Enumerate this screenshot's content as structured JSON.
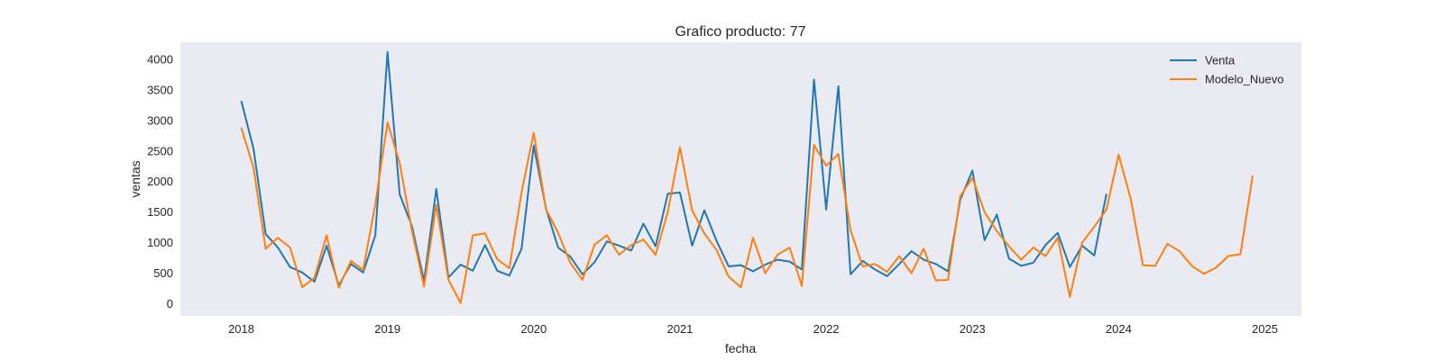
{
  "chart_data": {
    "type": "line",
    "title": "Grafico producto: 77",
    "xlabel": "fecha",
    "ylabel": "ventas",
    "xlim": [
      "2017-08-01",
      "2025-04-01"
    ],
    "ylim": [
      -200,
      4280
    ],
    "x_ticks": [
      "2018",
      "2019",
      "2020",
      "2021",
      "2022",
      "2023",
      "2024",
      "2025"
    ],
    "y_ticks": [
      0,
      500,
      1000,
      1500,
      2000,
      2500,
      3000,
      3500,
      4000
    ],
    "grid": false,
    "legend_position": "top-right",
    "colors": {
      "background": "#eaeaf2",
      "Venta": "#1f77b4",
      "Modelo_Nuevo": "#ff7f0e"
    },
    "series": [
      {
        "name": "Venta",
        "start": "2018-01",
        "values": [
          3320,
          2540,
          1140,
          920,
          600,
          510,
          360,
          950,
          300,
          650,
          510,
          1120,
          4120,
          1790,
          1270,
          370,
          1880,
          430,
          640,
          540,
          960,
          540,
          460,
          900,
          2590,
          1560,
          920,
          770,
          480,
          680,
          1020,
          950,
          870,
          1310,
          940,
          1800,
          1820,
          950,
          1530,
          1030,
          610,
          630,
          530,
          640,
          720,
          690,
          560,
          3670,
          1540,
          3560,
          480,
          700,
          560,
          450,
          650,
          860,
          720,
          650,
          530,
          1700,
          2180,
          1040,
          1460,
          740,
          620,
          670,
          960,
          1160,
          600,
          950,
          790,
          1800
        ]
      },
      {
        "name": "Modelo_Nuevo",
        "start": "2018-01",
        "values": [
          2880,
          2230,
          900,
          1080,
          920,
          270,
          420,
          1120,
          260,
          700,
          550,
          1630,
          2970,
          2300,
          1200,
          280,
          1620,
          390,
          10,
          1120,
          1150,
          730,
          580,
          1820,
          2800,
          1550,
          1160,
          670,
          390,
          970,
          1120,
          800,
          960,
          1050,
          800,
          1500,
          2560,
          1530,
          1150,
          880,
          440,
          270,
          1080,
          500,
          800,
          920,
          290,
          2600,
          2260,
          2450,
          1200,
          610,
          650,
          520,
          780,
          500,
          900,
          380,
          390,
          1760,
          2060,
          1500,
          1190,
          940,
          720,
          920,
          780,
          1080,
          110,
          1000,
          1260,
          1540,
          2440,
          1710,
          630,
          620,
          980,
          860,
          620,
          490,
          590,
          780,
          810,
          2100
        ]
      }
    ]
  }
}
